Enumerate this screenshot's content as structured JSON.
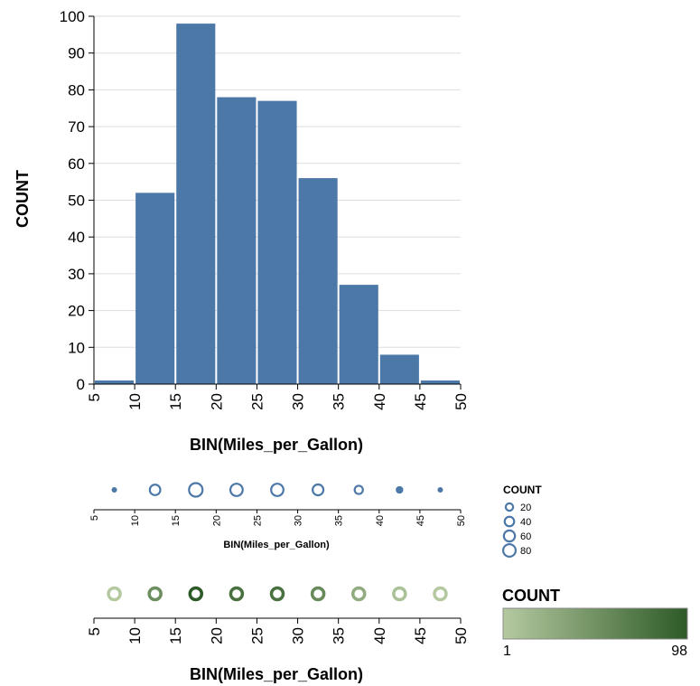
{
  "chart_data": [
    {
      "type": "bar",
      "bins": [
        [
          5,
          10
        ],
        [
          10,
          15
        ],
        [
          15,
          20
        ],
        [
          20,
          25
        ],
        [
          25,
          30
        ],
        [
          30,
          35
        ],
        [
          35,
          40
        ],
        [
          40,
          45
        ],
        [
          45,
          50
        ]
      ],
      "values": [
        1,
        52,
        98,
        78,
        77,
        56,
        27,
        8,
        1
      ],
      "xlabel": "BIN(Miles_per_Gallon)",
      "ylabel": "COUNT",
      "x_ticks": [
        "5",
        "10",
        "15",
        "20",
        "25",
        "30",
        "35",
        "40",
        "45",
        "50"
      ],
      "y_ticks": [
        "0",
        "10",
        "20",
        "30",
        "40",
        "50",
        "60",
        "70",
        "80",
        "90",
        "100"
      ],
      "xlim": [
        5,
        50
      ],
      "ylim": [
        0,
        100
      ],
      "grid": "horizontal",
      "bar_color": "#4c78a8"
    },
    {
      "type": "scatter",
      "encoding": "size",
      "x": [
        7.5,
        12.5,
        17.5,
        22.5,
        27.5,
        32.5,
        37.5,
        42.5,
        47.5
      ],
      "values": [
        1,
        52,
        98,
        78,
        77,
        56,
        27,
        8,
        1
      ],
      "xlabel": "BIN(Miles_per_Gallon)",
      "x_ticks": [
        "5",
        "10",
        "15",
        "20",
        "25",
        "30",
        "35",
        "40",
        "45",
        "50"
      ],
      "xlim": [
        5,
        50
      ],
      "color": "#4c78a8",
      "legend": {
        "title": "COUNT",
        "entries": [
          "20",
          "40",
          "60",
          "80"
        ],
        "entry_values": [
          20,
          40,
          60,
          80
        ],
        "placement": "right"
      }
    },
    {
      "type": "scatter",
      "encoding": "color",
      "x": [
        7.5,
        12.5,
        17.5,
        22.5,
        27.5,
        32.5,
        37.5,
        42.5,
        47.5
      ],
      "values": [
        1,
        52,
        98,
        78,
        77,
        56,
        27,
        8,
        1
      ],
      "xlabel": "BIN(Miles_per_Gallon)",
      "x_ticks": [
        "5",
        "10",
        "15",
        "20",
        "25",
        "30",
        "35",
        "40",
        "45",
        "50"
      ],
      "xlim": [
        5,
        50
      ],
      "color_range": [
        "#b5c9a0",
        "#2d5a27"
      ],
      "legend": {
        "title": "COUNT",
        "min_label": "1",
        "max_label": "98",
        "min_value": 1,
        "max_value": 98,
        "placement": "right"
      }
    }
  ]
}
